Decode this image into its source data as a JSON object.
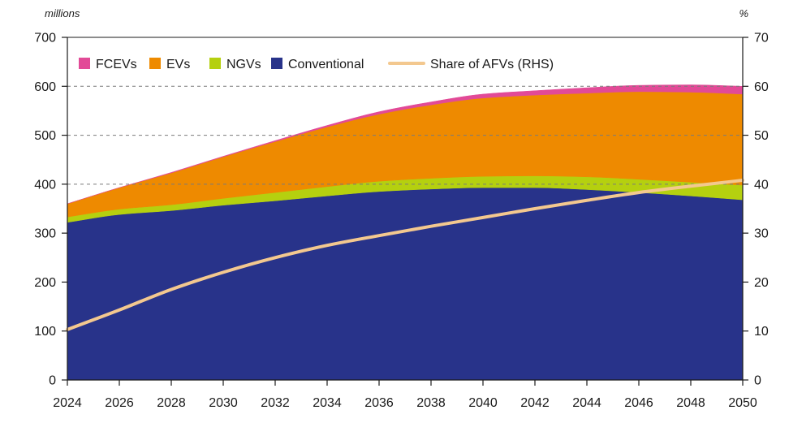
{
  "chart_data": {
    "type": "area",
    "left_unit": "millions",
    "right_unit": "%",
    "x": [
      2024,
      2026,
      2028,
      2030,
      2032,
      2034,
      2036,
      2038,
      2040,
      2042,
      2044,
      2046,
      2048,
      2050
    ],
    "x_ticks": [
      "2024",
      "2026",
      "2028",
      "2030",
      "2032",
      "2034",
      "2036",
      "2038",
      "2040",
      "2042",
      "2044",
      "2046",
      "2048",
      "2050"
    ],
    "ylim": [
      0,
      700
    ],
    "y_ticks": [
      "0",
      "100",
      "200",
      "300",
      "400",
      "500",
      "600",
      "700"
    ],
    "y2lim": [
      0,
      70
    ],
    "y2_ticks": [
      "0",
      "10",
      "20",
      "30",
      "40",
      "50",
      "60",
      "70"
    ],
    "grid": "dashed horizontal at 400, 500, 600",
    "legend_position": "top-left",
    "series": [
      {
        "name": "Conventional",
        "color": "#28338a",
        "kind": "stacked-area",
        "values": [
          322,
          338,
          346,
          357,
          366,
          376,
          385,
          390,
          393,
          393,
          389,
          383,
          376,
          368
        ]
      },
      {
        "name": "NGVs",
        "color": "#b5d00f",
        "kind": "stacked-area",
        "values": [
          11,
          11,
          12,
          14,
          17,
          19,
          21,
          22,
          23,
          24,
          26,
          27,
          28,
          30
        ]
      },
      {
        "name": "EVs",
        "color": "#ee8a00",
        "kind": "stacked-area",
        "values": [
          27,
          44,
          65,
          85,
          104,
          122,
          137,
          150,
          160,
          165,
          171,
          179,
          184,
          186
        ]
      },
      {
        "name": "FCEVs",
        "color": "#e24a97",
        "kind": "stacked-area",
        "values": [
          0,
          0,
          1,
          1,
          2,
          3,
          5,
          6,
          8,
          9,
          11,
          13,
          15,
          16
        ]
      },
      {
        "name": "Share of AFVs (RHS)",
        "color": "#f3c88f",
        "kind": "line",
        "axis": "right",
        "values": [
          10.3,
          14.3,
          18.5,
          22.0,
          25.0,
          27.5,
          29.5,
          31.4,
          33.2,
          35.0,
          36.7,
          38.3,
          39.6,
          40.8
        ]
      }
    ],
    "legend": [
      {
        "name": "FCEVs",
        "color": "#e24a97",
        "swatch": "square"
      },
      {
        "name": "EVs",
        "color": "#ee8a00",
        "swatch": "square"
      },
      {
        "name": "NGVs",
        "color": "#b5d00f",
        "swatch": "square"
      },
      {
        "name": "Conventional",
        "color": "#28338a",
        "swatch": "square"
      },
      {
        "name": "Share of AFVs (RHS)",
        "color": "#f3c88f",
        "swatch": "line"
      }
    ]
  }
}
